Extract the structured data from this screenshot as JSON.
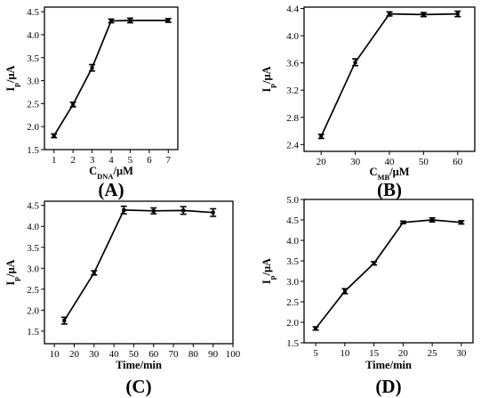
{
  "chart_data": [
    {
      "panel": "(A)",
      "type": "line",
      "xlabel": {
        "main": "C",
        "sub": "DNA",
        "rest": "/μM"
      },
      "ylabel": {
        "main": "I",
        "sub": "p",
        "rest": "/μA"
      },
      "xlim": [
        0.5,
        7.5
      ],
      "ylim": [
        1.5,
        4.6
      ],
      "xticks": [
        "1",
        "2",
        "3",
        "4",
        "5",
        "6",
        "7"
      ],
      "yticks": [
        "1.5",
        "2.0",
        "2.5",
        "3.0",
        "3.5",
        "4.0",
        "4.5"
      ],
      "x": [
        1,
        2,
        3,
        4,
        5,
        7
      ],
      "y": [
        1.8,
        2.48,
        3.28,
        4.3,
        4.31,
        4.31
      ],
      "err": [
        0.04,
        0.05,
        0.07,
        0.04,
        0.05,
        0.04
      ]
    },
    {
      "panel": "(B)",
      "type": "line",
      "xlabel": {
        "main": "C",
        "sub": "MB",
        "rest": "/μM"
      },
      "ylabel": {
        "main": "I",
        "sub": "p",
        "rest": "/μA"
      },
      "xlim": [
        15,
        65
      ],
      "ylim": [
        2.3,
        4.42
      ],
      "xticks": [
        "20",
        "30",
        "40",
        "50",
        "60"
      ],
      "yticks": [
        "2.4",
        "2.8",
        "3.2",
        "3.6",
        "4.0",
        "4.4"
      ],
      "x": [
        20,
        30,
        40,
        50,
        60
      ],
      "y": [
        2.52,
        3.61,
        4.32,
        4.31,
        4.32
      ],
      "err": [
        0.03,
        0.05,
        0.03,
        0.03,
        0.04
      ]
    },
    {
      "panel": "(C)",
      "type": "line",
      "xlabel": {
        "main": "Time/min",
        "sub": "",
        "rest": ""
      },
      "ylabel": {
        "main": "I",
        "sub": "p",
        "rest": "/μA"
      },
      "xlim": [
        5,
        100
      ],
      "ylim": [
        1.2,
        4.6
      ],
      "xticks": [
        "10",
        "20",
        "30",
        "40",
        "50",
        "60",
        "70",
        "80",
        "90",
        "100"
      ],
      "yticks": [
        "1.5",
        "2.0",
        "2.5",
        "3.0",
        "3.5",
        "4.0",
        "4.5"
      ],
      "x": [
        15,
        30,
        45,
        60,
        75,
        90
      ],
      "y": [
        1.75,
        2.89,
        4.39,
        4.37,
        4.38,
        4.33
      ],
      "err": [
        0.08,
        0.05,
        0.09,
        0.07,
        0.09,
        0.09
      ]
    },
    {
      "panel": "(D)",
      "type": "line",
      "xlabel": {
        "main": "Time/min",
        "sub": "",
        "rest": ""
      },
      "ylabel": {
        "main": "I",
        "sub": "p",
        "rest": "/μA"
      },
      "xlim": [
        3,
        32
      ],
      "ylim": [
        1.5,
        5.0
      ],
      "xticks": [
        "5",
        "10",
        "15",
        "20",
        "25",
        "30"
      ],
      "yticks": [
        "1.5",
        "2.0",
        "2.5",
        "3.0",
        "3.5",
        "4.0",
        "4.5",
        "5.0"
      ],
      "x": [
        5,
        10,
        15,
        20,
        25,
        30
      ],
      "y": [
        1.85,
        2.76,
        3.44,
        4.44,
        4.5,
        4.44
      ],
      "err": [
        0.04,
        0.06,
        0.04,
        0.03,
        0.05,
        0.04
      ]
    }
  ]
}
